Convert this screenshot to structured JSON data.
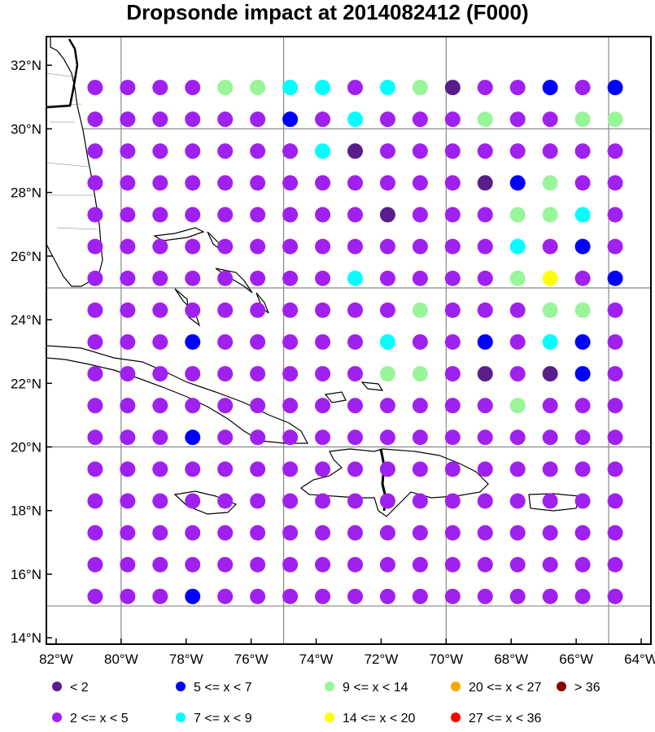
{
  "title": "Dropsonde impact at 2014082412 (F000)",
  "lat_labels": [
    "32°N",
    "30°N",
    "28°N",
    "26°N",
    "24°N",
    "22°N",
    "20°N",
    "18°N",
    "16°N",
    "14°N"
  ],
  "lon_labels": [
    "82°W",
    "80°W",
    "78°W",
    "76°W",
    "74°W",
    "72°W",
    "70°W",
    "68°W",
    "66°W",
    "64°W"
  ],
  "legend": [
    {
      "label": "<  2",
      "color": "#5a1e8c"
    },
    {
      "label": "5 <= x <  7",
      "color": "#0000ff"
    },
    {
      "label": "9 <= x < 14",
      "color": "#98f598"
    },
    {
      "label": "20 <= x < 27",
      "color": "#ffa500"
    },
    {
      "label": "> 36",
      "color": "#8b0000"
    },
    {
      "label": "2 <= x <  5",
      "color": "#a020f0"
    },
    {
      "label": "7 <= x <  9",
      "color": "#00ffff"
    },
    {
      "label": "14 <= x < 20",
      "color": "#ffff00"
    },
    {
      "label": "27 <= x < 36",
      "color": "#ff0000"
    }
  ],
  "chart_data": {
    "type": "scatter",
    "title": "Dropsonde impact at 2014082412 (F000)",
    "xlim": [
      -82.3,
      -63.7
    ],
    "ylim": [
      13.8,
      32.9
    ],
    "lons": [
      -80.8,
      -78.8,
      -76.8,
      -74.8,
      -72.8,
      -70.8,
      -68.8,
      -66.8,
      -64.8
    ],
    "lons_full": [
      -80.8,
      -79.8,
      -78.8,
      -77.8,
      -76.8,
      -75.8,
      -74.8,
      -73.8,
      -72.8,
      -71.8,
      -70.8,
      -69.8,
      -68.8,
      -67.8,
      -66.8,
      -65.8,
      -64.8
    ],
    "lats": [
      31.3,
      30.3,
      29.3,
      28.3,
      27.3,
      26.3,
      25.3,
      24.3,
      23.3,
      22.3,
      21.3,
      20.3,
      19.3,
      18.3,
      17.3,
      16.3,
      15.3
    ],
    "category_colors": [
      "#5a1e8c",
      "#a020f0",
      "#0000ff",
      "#00ffff",
      "#98f598",
      "#ffff00",
      "#ffa500",
      "#ff0000",
      "#8b0000"
    ],
    "category_grid": [
      "11114433134011212",
      "11111121311141144",
      "11111113011111111",
      "11111111111102411",
      "11111111101114431",
      "11111111111113121",
      "11111111311114512",
      "11111111114111441",
      "11121111131121321",
      "11111111144101021",
      "11111111111114111",
      "11121111111111111",
      "11111111111111111",
      "11111111111111111",
      "11111111111111111",
      "11111111111111111",
      "11121111111111111"
    ],
    "legend_items": [
      "< 2",
      "2 <= x < 5",
      "5 <= x < 7",
      "7 <= x < 9",
      "9 <= x < 14",
      "14 <= x < 20",
      "20 <= x < 27",
      "27 <= x < 36",
      "> 36"
    ]
  }
}
